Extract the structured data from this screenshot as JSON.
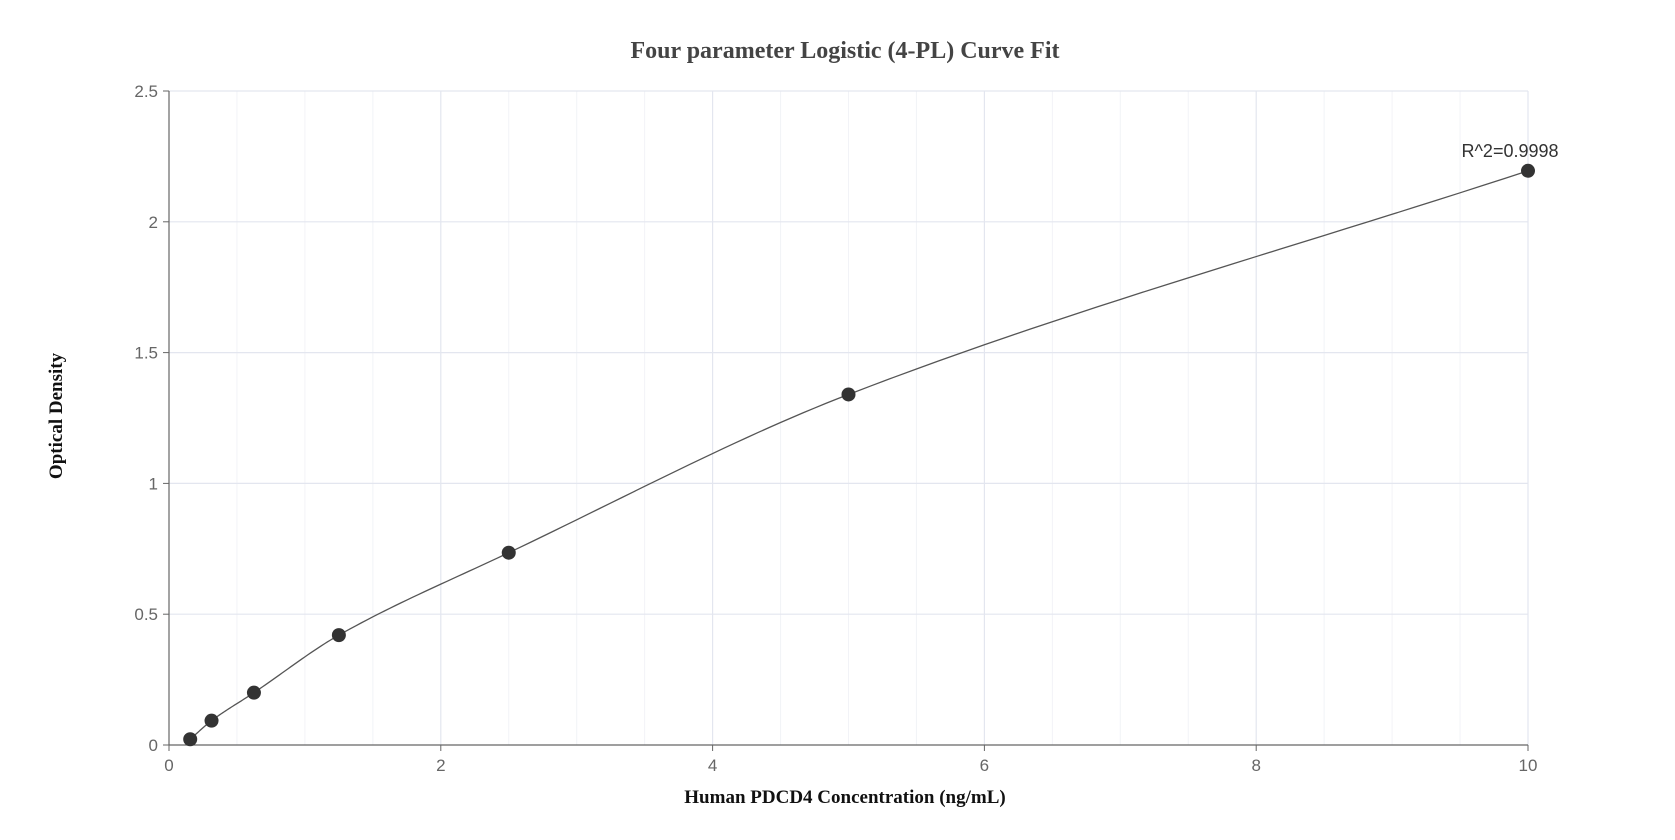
{
  "chart_data": {
    "type": "scatter",
    "title": "Four parameter Logistic (4-PL) Curve Fit",
    "xlabel": "Human PDCD4 Concentration (ng/mL)",
    "ylabel": "Optical Density",
    "xlim": [
      0,
      10
    ],
    "ylim": [
      0,
      2.5
    ],
    "x_ticks": [
      "0",
      "2",
      "4",
      "6",
      "8",
      "10"
    ],
    "y_ticks": [
      "0",
      "0.5",
      "1",
      "1.5",
      "2",
      "2.5"
    ],
    "grid": true,
    "points": {
      "x": [
        0.156,
        0.313,
        0.625,
        1.25,
        2.5,
        5,
        10
      ],
      "y": [
        0.022,
        0.093,
        0.2,
        0.42,
        0.735,
        1.34,
        2.195
      ]
    },
    "fit_line": true,
    "annotation": "R^2=0.9998",
    "colors": {
      "points": "#333333",
      "curve": "#555555",
      "grid_major": "#e3e6ef",
      "grid_minor": "#f2f3f7",
      "axis": "#666666"
    }
  }
}
